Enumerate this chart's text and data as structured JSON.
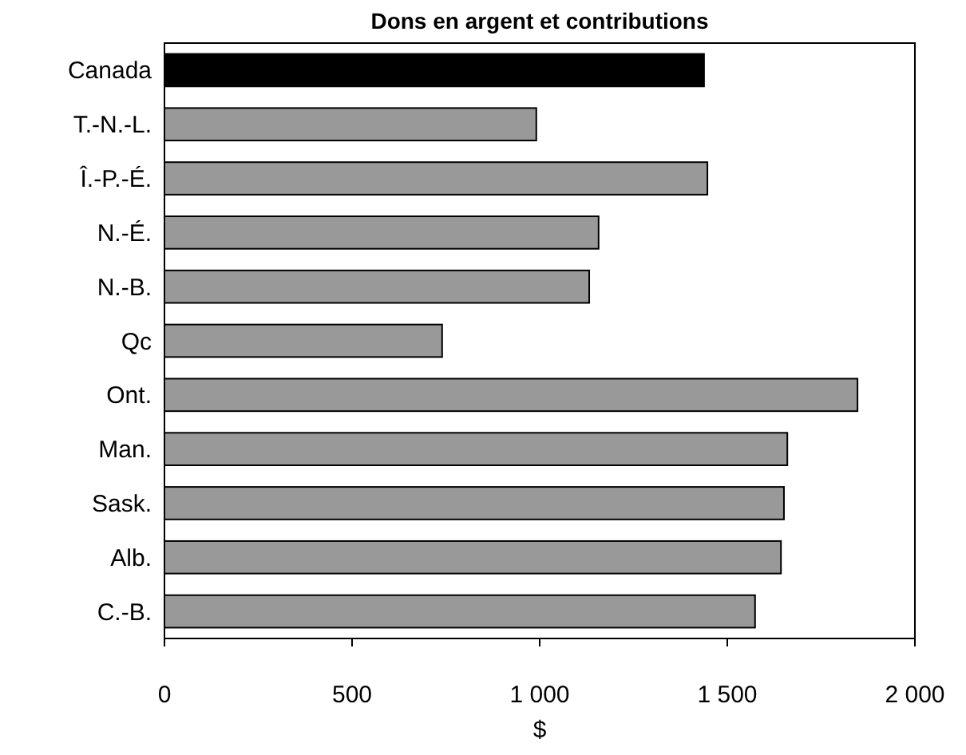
{
  "chart_data": {
    "type": "bar",
    "orientation": "horizontal",
    "title": "Dons en argent et contributions",
    "xlabel": "$",
    "categories": [
      "Canada",
      "T.-N.-L.",
      "Î.-P.-É.",
      "N.-É.",
      "N.-B.",
      "Qc",
      "Ont.",
      "Man.",
      "Sask.",
      "Alb.",
      "C.-B."
    ],
    "values": [
      1438,
      991,
      1447,
      1157,
      1132,
      740,
      1847,
      1660,
      1651,
      1643,
      1574
    ],
    "colors": [
      "#000000",
      "#999999",
      "#999999",
      "#999999",
      "#999999",
      "#999999",
      "#999999",
      "#999999",
      "#999999",
      "#999999",
      "#999999"
    ],
    "xlim": [
      0,
      2000
    ],
    "xticks": [
      0,
      500,
      {
        "value": 1000,
        "label": "1 000"
      },
      {
        "value": 1500,
        "label": "1 500"
      },
      {
        "value": 2000,
        "label": "2 000"
      }
    ],
    "grid": false
  }
}
